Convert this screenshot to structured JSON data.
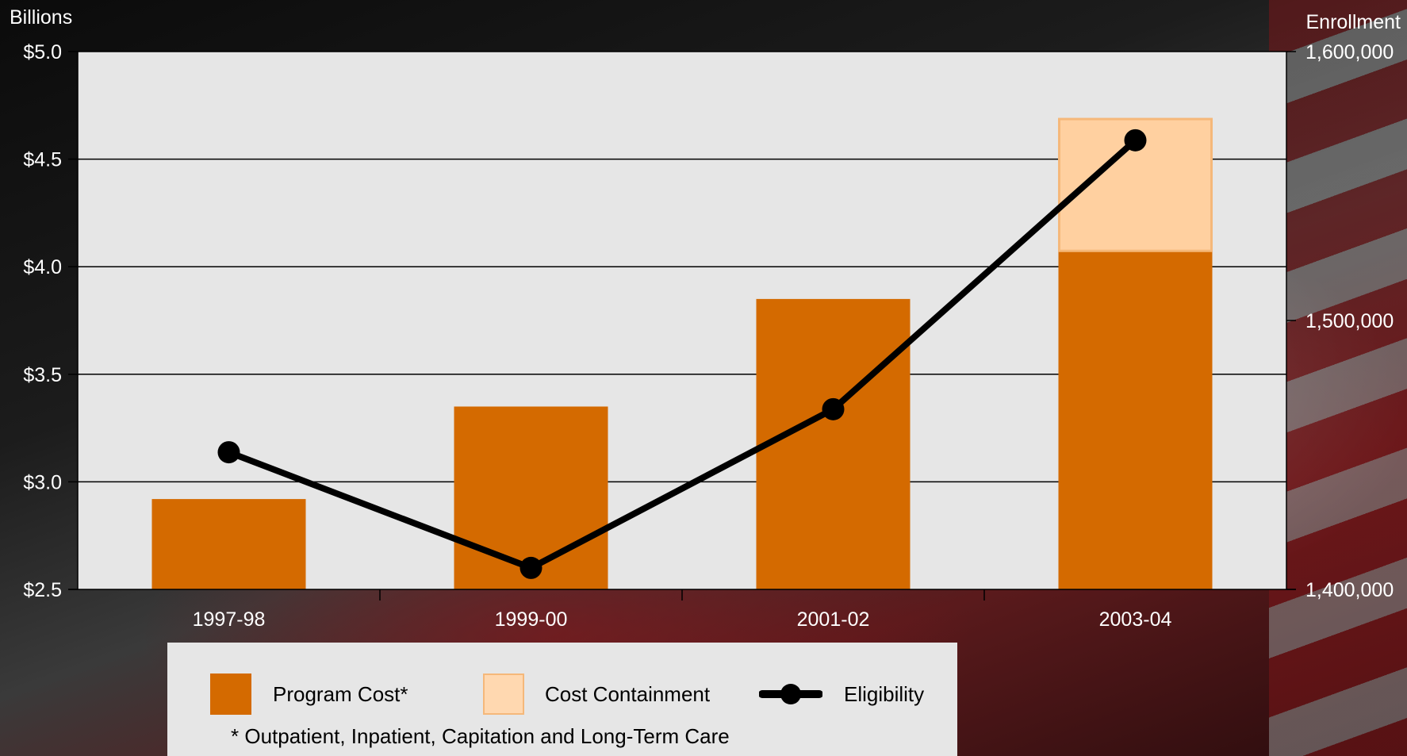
{
  "chart_data": {
    "type": "bar",
    "categories": [
      "1997-98",
      "1999-00",
      "2001-02",
      "2003-04"
    ],
    "series": [
      {
        "name": "Program Cost*",
        "kind": "bar",
        "axis": "left",
        "color": "#d46a00",
        "values": [
          2.92,
          3.35,
          3.85,
          4.07
        ]
      },
      {
        "name": "Cost Containment",
        "kind": "bar-stacked",
        "axis": "left",
        "color": "#ffd0a0",
        "border": "#f5b87a",
        "values": [
          0,
          0,
          0,
          0.62
        ]
      },
      {
        "name": "Eligibility",
        "kind": "line",
        "axis": "right",
        "color": "#000000",
        "values": [
          1451000,
          1408000,
          1467000,
          1567000
        ]
      }
    ],
    "left_axis": {
      "label": "Billions",
      "ylim": [
        2.5,
        5.0
      ],
      "ticks": [
        {
          "value": 5.0,
          "label": "$5.0"
        },
        {
          "value": 4.5,
          "label": "$4.5"
        },
        {
          "value": 4.0,
          "label": "$4.0"
        },
        {
          "value": 3.5,
          "label": "$3.5"
        },
        {
          "value": 3.0,
          "label": "$3.0"
        },
        {
          "value": 2.5,
          "label": "$2.5"
        }
      ]
    },
    "right_axis": {
      "label": "Enrollment",
      "ylim": [
        1400000,
        1600000
      ],
      "ticks": [
        {
          "value": 1600000,
          "label": "1,600,000"
        },
        {
          "value": 1500000,
          "label": "1,500,000"
        },
        {
          "value": 1400000,
          "label": "1,400,000"
        }
      ]
    },
    "grid": true,
    "legend_position": "bottom",
    "colors": {
      "plot_background": "#e6e6e6",
      "axis_text": "#ffffff",
      "gridline": "#000000"
    },
    "footnote": "* Outpatient, Inpatient, Capitation and Long-Term Care"
  },
  "legend": {
    "items": [
      {
        "label": "Program Cost*"
      },
      {
        "label": "Cost Containment"
      },
      {
        "label": "Eligibility"
      }
    ]
  }
}
